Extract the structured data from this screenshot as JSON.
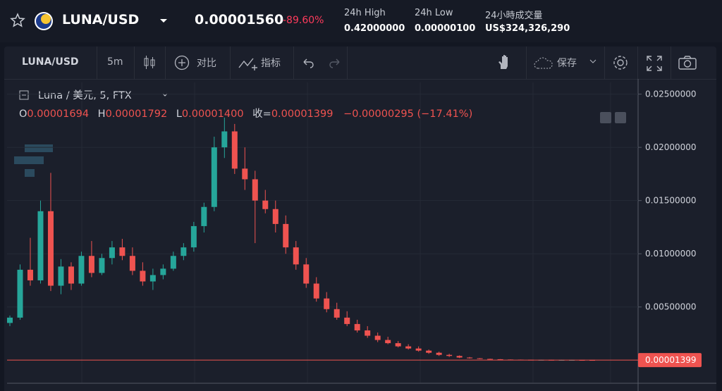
{
  "header": {
    "symbol": "LUNA/USD",
    "price": "0.00001560",
    "change": "-89.60%",
    "high_label": "24h High",
    "high": "0.42000000",
    "low_label": "24h Low",
    "low": "0.00000100",
    "volume_label": "24小時成交量",
    "volume": "US$324,326,290"
  },
  "toolbar": {
    "symbol": "LUNA/USD",
    "interval": "5m",
    "compare": "对比",
    "indicators": "指标",
    "save": "保存"
  },
  "legend": {
    "title": "Luna / 美元, 5, FTX",
    "o_label": "O",
    "open": "0.00001694",
    "h_label": "H",
    "high": "0.00001792",
    "l_label": "L",
    "low": "0.00001400",
    "c_label": "收=",
    "close": "0.00001399",
    "change": "−0.00000295 (−17.41%)"
  },
  "chart_data": {
    "type": "candlestick",
    "up_color": "#26a69a",
    "down_color": "#ef5350",
    "ylim": [
      -0.0021,
      0.0261
    ],
    "yticks": [
      {
        "value": 0.005,
        "label": "0.00500000"
      },
      {
        "value": 0.01,
        "label": "0.01000000"
      },
      {
        "value": 0.015,
        "label": "0.01500000"
      },
      {
        "value": 0.02,
        "label": "0.02000000"
      },
      {
        "value": 0.025,
        "label": "0.02500000"
      }
    ],
    "grid": true,
    "open": [
      0.0035,
      0.004,
      0.0085,
      0.0075,
      0.014,
      0.007,
      0.0088,
      0.0072,
      0.0098,
      0.0082,
      0.0096,
      0.0106,
      0.0098,
      0.0084,
      0.0074,
      0.008,
      0.0086,
      0.0098,
      0.0106,
      0.0126,
      0.0144,
      0.02,
      0.0215,
      0.018,
      0.017,
      0.015,
      0.0142,
      0.0128,
      0.0106,
      0.009,
      0.0072,
      0.0058,
      0.0048,
      0.004,
      0.0034,
      0.0028,
      0.0023,
      0.0019,
      0.0016,
      0.0013,
      0.0011,
      0.0009,
      0.0007,
      0.0005,
      0.0004,
      0.00025,
      0.00018,
      0.00012,
      9e-05,
      6e-05,
      5e-05,
      4e-05,
      3e-05,
      3e-05,
      2e-05,
      2e-05,
      2e-05,
      1.694e-05
    ],
    "high": [
      0.0042,
      0.009,
      0.0115,
      0.015,
      0.0176,
      0.0095,
      0.0092,
      0.0102,
      0.0112,
      0.01,
      0.0112,
      0.0114,
      0.0106,
      0.0092,
      0.0086,
      0.009,
      0.0102,
      0.011,
      0.013,
      0.0148,
      0.021,
      0.0228,
      0.0222,
      0.02,
      0.0178,
      0.016,
      0.015,
      0.0136,
      0.0112,
      0.0096,
      0.0078,
      0.0064,
      0.0054,
      0.0046,
      0.0038,
      0.0032,
      0.0026,
      0.0022,
      0.0018,
      0.0015,
      0.0013,
      0.001,
      0.0008,
      0.0006,
      0.00045,
      0.0003,
      0.0002,
      0.00014,
      0.0001,
      7e-05,
      6e-05,
      5e-05,
      4e-05,
      4e-05,
      3e-05,
      3e-05,
      2e-05,
      1.792e-05
    ],
    "low": [
      0.0032,
      0.0038,
      0.007,
      0.0072,
      0.0065,
      0.0062,
      0.0066,
      0.007,
      0.0078,
      0.008,
      0.009,
      0.0094,
      0.008,
      0.007,
      0.0066,
      0.0076,
      0.0084,
      0.0094,
      0.0102,
      0.012,
      0.014,
      0.019,
      0.0175,
      0.016,
      0.011,
      0.0138,
      0.012,
      0.01,
      0.0085,
      0.0068,
      0.0055,
      0.0045,
      0.0038,
      0.0032,
      0.0026,
      0.0021,
      0.0017,
      0.0015,
      0.0012,
      0.001,
      0.0008,
      0.0006,
      0.0004,
      0.0003,
      0.0002,
      0.00015,
      0.0001,
      7e-05,
      5e-05,
      4e-05,
      3e-05,
      2e-05,
      2e-05,
      2e-05,
      1e-05,
      1e-05,
      1e-05,
      1.4e-05
    ],
    "close": [
      0.004,
      0.0085,
      0.0075,
      0.014,
      0.007,
      0.0088,
      0.0072,
      0.0098,
      0.0082,
      0.0096,
      0.0106,
      0.0098,
      0.0084,
      0.0074,
      0.008,
      0.0086,
      0.0098,
      0.0106,
      0.0126,
      0.0144,
      0.02,
      0.0215,
      0.018,
      0.017,
      0.015,
      0.0142,
      0.0128,
      0.0106,
      0.009,
      0.0072,
      0.0058,
      0.0048,
      0.004,
      0.0034,
      0.0028,
      0.0023,
      0.0019,
      0.0016,
      0.0013,
      0.0011,
      0.0009,
      0.0007,
      0.0005,
      0.0004,
      0.00025,
      0.00018,
      0.00012,
      9e-05,
      6e-05,
      5e-05,
      4e-05,
      3e-05,
      3e-05,
      2e-05,
      2e-05,
      2e-05,
      1.694e-05,
      1.399e-05
    ]
  }
}
